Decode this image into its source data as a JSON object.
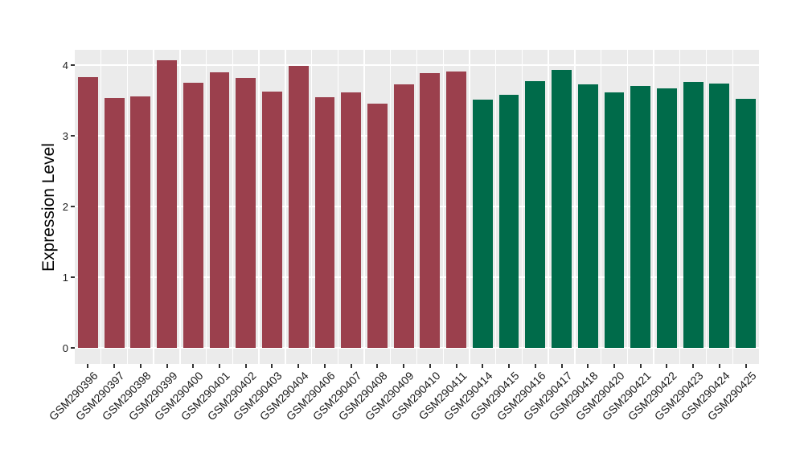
{
  "figure": {
    "background": "#FFFFFF"
  },
  "chart_data": {
    "type": "bar",
    "title": "",
    "xlabel": "",
    "ylabel": "Expression Level",
    "y_ticks": [
      0,
      1,
      2,
      3,
      4
    ],
    "ylim": [
      -0.23,
      4.22
    ],
    "grid": true,
    "legend": false,
    "x_tick_angle": 45,
    "panel_bg": "#EBEBEB",
    "grid_color": "#FFFFFF",
    "axis_text_color": "#1A1A1A",
    "tick_color": "#333333",
    "group_colors": {
      "left_group": "#9B404D",
      "right_group": "#006B4A"
    },
    "categories": [
      "GSM290396",
      "GSM290397",
      "GSM290398",
      "GSM290399",
      "GSM290400",
      "GSM290401",
      "GSM290402",
      "GSM290403",
      "GSM290404",
      "GSM290406",
      "GSM290407",
      "GSM290408",
      "GSM290409",
      "GSM290410",
      "GSM290411",
      "GSM290414",
      "GSM290415",
      "GSM290416",
      "GSM290417",
      "GSM290418",
      "GSM290420",
      "GSM290421",
      "GSM290422",
      "GSM290423",
      "GSM290424",
      "GSM290425"
    ],
    "values": [
      3.83,
      3.53,
      3.56,
      4.07,
      3.75,
      3.9,
      3.82,
      3.63,
      3.99,
      3.55,
      3.61,
      3.46,
      3.73,
      3.89,
      3.91,
      3.51,
      3.58,
      3.77,
      3.93,
      3.73,
      3.61,
      3.7,
      3.67,
      3.76,
      3.74,
      3.52
    ],
    "bar_colors": [
      "#9B404D",
      "#9B404D",
      "#9B404D",
      "#9B404D",
      "#9B404D",
      "#9B404D",
      "#9B404D",
      "#9B404D",
      "#9B404D",
      "#9B404D",
      "#9B404D",
      "#9B404D",
      "#9B404D",
      "#9B404D",
      "#9B404D",
      "#006B4A",
      "#006B4A",
      "#006B4A",
      "#006B4A",
      "#006B4A",
      "#006B4A",
      "#006B4A",
      "#006B4A",
      "#006B4A",
      "#006B4A",
      "#006B4A"
    ]
  }
}
